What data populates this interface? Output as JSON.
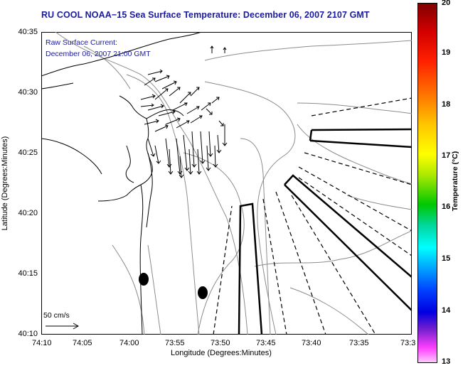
{
  "header": {
    "title": "RU COOL  NOAA−15  Sea Surface Temperature:  December 06, 2007 2107 GMT",
    "current_label": "Raw Surface Current:",
    "current_time": "December 06, 2007 21:00 GMT"
  },
  "axes": {
    "xlabel": "Longitude (Degrees:Minutes)",
    "ylabel": "Latitude (Degrees:Minutes)",
    "xticks": [
      "74:10",
      "74:05",
      "74:00",
      "73:55",
      "73:50",
      "73:45",
      "73:40",
      "73:35",
      "73:3"
    ],
    "yticks": [
      "40:35",
      "40:30",
      "40:25",
      "40:20",
      "40:15",
      "40:10"
    ]
  },
  "colorbar": {
    "label": "Temperature (°C)",
    "ticks": [
      "20",
      "19",
      "18",
      "17",
      "16",
      "15",
      "14",
      "13"
    ],
    "range": [
      13,
      20
    ]
  },
  "scale": {
    "label": "50 cm/s"
  },
  "colors": {
    "title": "#1a1a9e",
    "contour": "#8c8c8c",
    "coast": "#000000"
  }
}
